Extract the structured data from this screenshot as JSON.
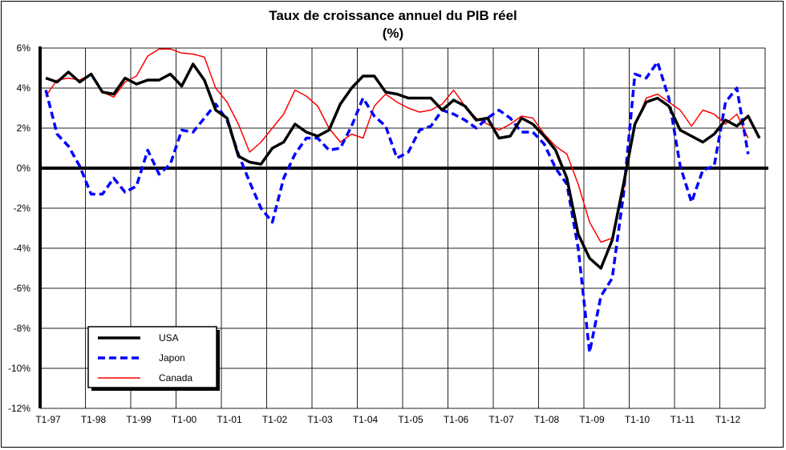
{
  "chart_data": {
    "type": "line",
    "title": "Taux de croissance annuel du PIB réel",
    "subtitle": "(%)",
    "xlabel": "",
    "ylabel": "",
    "ylim": [
      -12,
      6
    ],
    "yticks": [
      6,
      4,
      2,
      0,
      -2,
      -4,
      -6,
      -8,
      -10,
      -12
    ],
    "ytick_labels": [
      "6%",
      "4%",
      "2%",
      "0%",
      "-2%",
      "-4%",
      "-6%",
      "-8%",
      "-10%",
      "-12%"
    ],
    "xtick_labels": [
      "T1-97",
      "T1-98",
      "T1-99",
      "T1-00",
      "T1-01",
      "T1-02",
      "T1-03",
      "T1-04",
      "T1-05",
      "T1-06",
      "T1-07",
      "T1-08",
      "T1-09",
      "T1-10",
      "T1-11",
      "T1-12"
    ],
    "x_unit": "quarter, starting T1-97",
    "grid": true,
    "legend_position": "bottom-left",
    "series": [
      {
        "name": "USA",
        "color": "#000000",
        "style": "solid-thick",
        "values": [
          4.5,
          4.3,
          4.8,
          4.3,
          4.7,
          3.8,
          3.7,
          4.5,
          4.2,
          4.4,
          4.4,
          4.7,
          4.1,
          5.2,
          4.4,
          2.9,
          2.5,
          0.6,
          0.3,
          0.2,
          1.0,
          1.3,
          2.2,
          1.8,
          1.6,
          1.9,
          3.2,
          4.0,
          4.6,
          4.6,
          3.8,
          3.7,
          3.5,
          3.5,
          3.5,
          2.9,
          3.4,
          3.1,
          2.4,
          2.5,
          1.5,
          1.6,
          2.5,
          2.2,
          1.6,
          0.9,
          -0.5,
          -3.3,
          -4.5,
          -5.0,
          -3.6,
          -0.8,
          2.2,
          3.3,
          3.5,
          3.1,
          1.9,
          1.6,
          1.3,
          1.7,
          2.4,
          2.1,
          2.6,
          1.5
        ]
      },
      {
        "name": "Japon",
        "color": "#0000ff",
        "style": "dashed",
        "values": [
          3.9,
          1.7,
          1.1,
          0.1,
          -1.3,
          -1.3,
          -0.5,
          -1.2,
          -0.9,
          0.9,
          -0.3,
          0.2,
          1.9,
          1.8,
          2.5,
          3.2,
          2.4,
          0.7,
          -0.7,
          -2.0,
          -2.7,
          -0.5,
          0.7,
          1.5,
          1.5,
          0.9,
          1.0,
          2.1,
          3.5,
          2.6,
          2.1,
          0.5,
          0.8,
          1.9,
          2.1,
          2.9,
          2.7,
          2.4,
          2.0,
          2.5,
          2.9,
          2.5,
          1.8,
          1.8,
          1.2,
          0.0,
          -0.8,
          -4.0,
          -9.2,
          -6.4,
          -5.5,
          -1.3,
          4.7,
          4.5,
          5.3,
          3.5,
          0.1,
          -1.7,
          -0.1,
          0.1,
          3.3,
          4.0,
          0.7
        ]
      },
      {
        "name": "Canada",
        "color": "#ff0000",
        "style": "solid-thin",
        "values": [
          3.6,
          4.4,
          4.5,
          4.4,
          4.7,
          3.8,
          3.55,
          4.3,
          4.6,
          5.6,
          5.95,
          5.95,
          5.75,
          5.7,
          5.55,
          4.0,
          3.3,
          2.2,
          0.8,
          1.3,
          2.0,
          2.7,
          3.9,
          3.6,
          3.1,
          2.0,
          1.3,
          1.7,
          1.5,
          3.1,
          3.7,
          3.3,
          3.0,
          2.8,
          2.9,
          3.2,
          3.9,
          3.1,
          2.5,
          2.2,
          1.9,
          2.2,
          2.6,
          2.5,
          1.7,
          1.1,
          0.7,
          -0.8,
          -2.7,
          -3.7,
          -3.5,
          -1.1,
          2.1,
          3.5,
          3.7,
          3.3,
          2.9,
          2.1,
          2.9,
          2.7,
          2.2,
          2.7,
          1.5
        ]
      }
    ]
  }
}
